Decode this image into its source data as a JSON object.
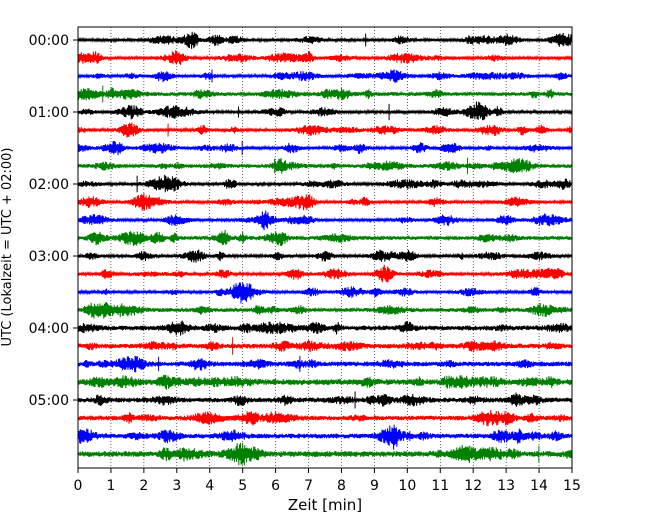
{
  "chart_data": {
    "type": "line",
    "subtype": "helicorder",
    "xlabel": "Zeit  [min]",
    "ylabel": "UTC (Lokalzeit = UTC + 02:00)",
    "xlim": [
      0,
      15
    ],
    "x_ticks": [
      "0",
      "1",
      "2",
      "3",
      "4",
      "5",
      "6",
      "7",
      "8",
      "9",
      "10",
      "11",
      "12",
      "13",
      "14",
      "15"
    ],
    "y_ticks": [
      "00:00",
      "01:00",
      "02:00",
      "03:00",
      "04:00",
      "05:00"
    ],
    "grid": "vertical dotted at each minute",
    "legend": "none",
    "trace_colors": [
      "#000000",
      "#ff0000",
      "#0000ff",
      "#008000"
    ],
    "trace_minutes": 15,
    "trace_count": 24
  }
}
